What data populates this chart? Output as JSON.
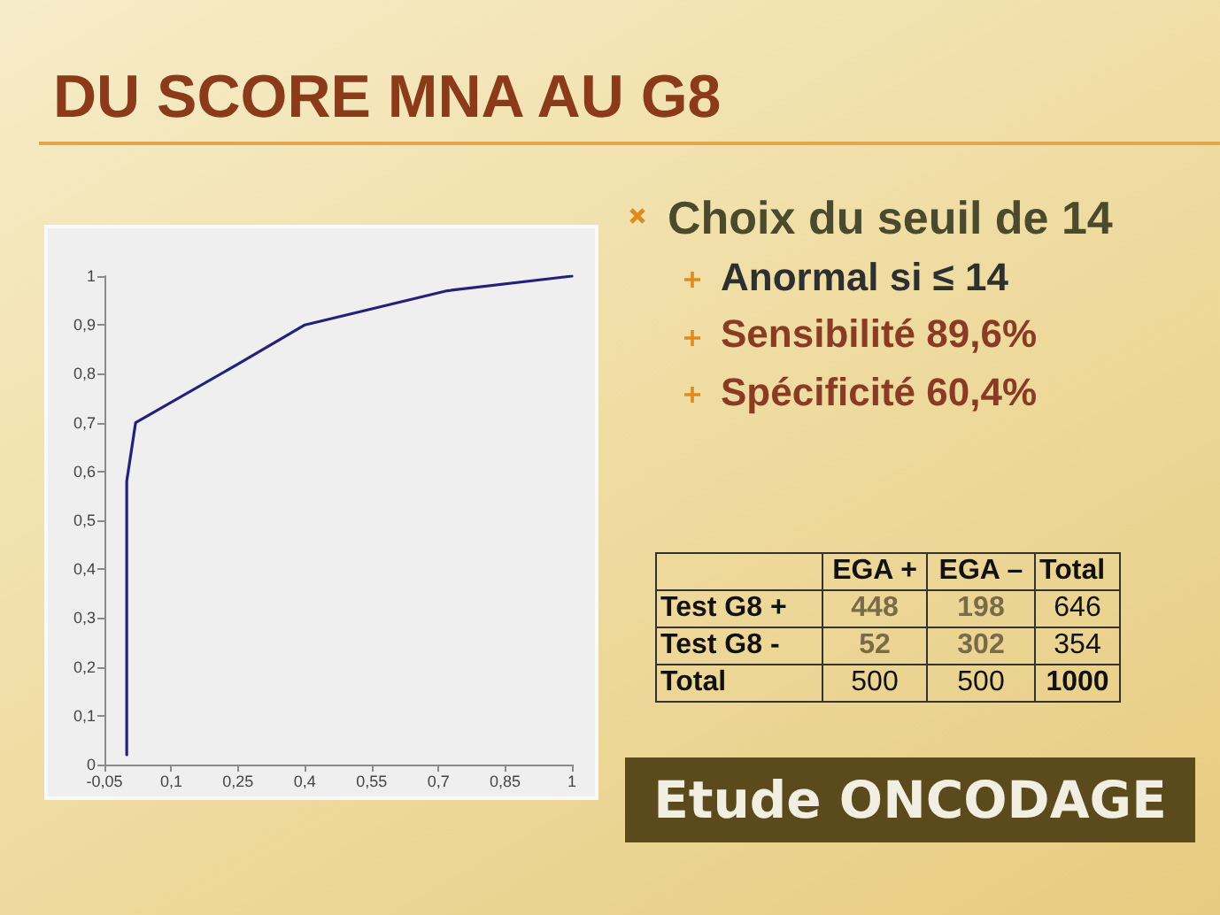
{
  "chart_data": {
    "type": "line",
    "title": "DU SCORE MNA AU G8",
    "x": [
      0,
      0,
      0.02,
      0.25,
      0.4,
      0.72,
      1
    ],
    "series": [
      {
        "color": "#22227a",
        "values": [
          0.02,
          0.58,
          0.7,
          0.82,
          0.9,
          0.97,
          1
        ]
      }
    ],
    "xlim": [
      -0.05,
      1
    ],
    "xticks": [
      {
        "value": -0.05,
        "label": "-0,05"
      },
      {
        "value": 0.1,
        "label": "0,1"
      },
      {
        "value": 0.25,
        "label": "0,25"
      },
      {
        "value": 0.4,
        "label": "0,4"
      },
      {
        "value": 0.55,
        "label": "0,55"
      },
      {
        "value": 0.7,
        "label": "0,7"
      },
      {
        "value": 0.85,
        "label": "0,85"
      },
      1
    ],
    "ylim": [
      0,
      1
    ],
    "yticks": [
      0,
      {
        "value": 0.1,
        "label": "0,1"
      },
      {
        "value": 0.2,
        "label": "0,2"
      },
      {
        "value": 0.3,
        "label": "0,3"
      },
      {
        "value": 0.4,
        "label": "0,4"
      },
      {
        "value": 0.5,
        "label": "0,5"
      },
      {
        "value": 0.6,
        "label": "0,6"
      },
      {
        "value": 0.7,
        "label": "0,7"
      },
      {
        "value": 0.8,
        "label": "0,8"
      },
      {
        "value": 0.9,
        "label": "0,9"
      },
      1
    ],
    "marker": "none",
    "line_style": "solid",
    "annotations": [
      "Choix du seuil de 14",
      "Anormal si ≤ 14",
      "Sensibilité 89,6%",
      "Spécificité 60,4%",
      "EGA +",
      "EGA –",
      "Total",
      "Test G8 +",
      "448",
      "198",
      "646",
      "Test G8 -",
      "52",
      "302",
      "354",
      "Total",
      "500",
      "500",
      "1000",
      "Etude ONCODAGE"
    ]
  }
}
